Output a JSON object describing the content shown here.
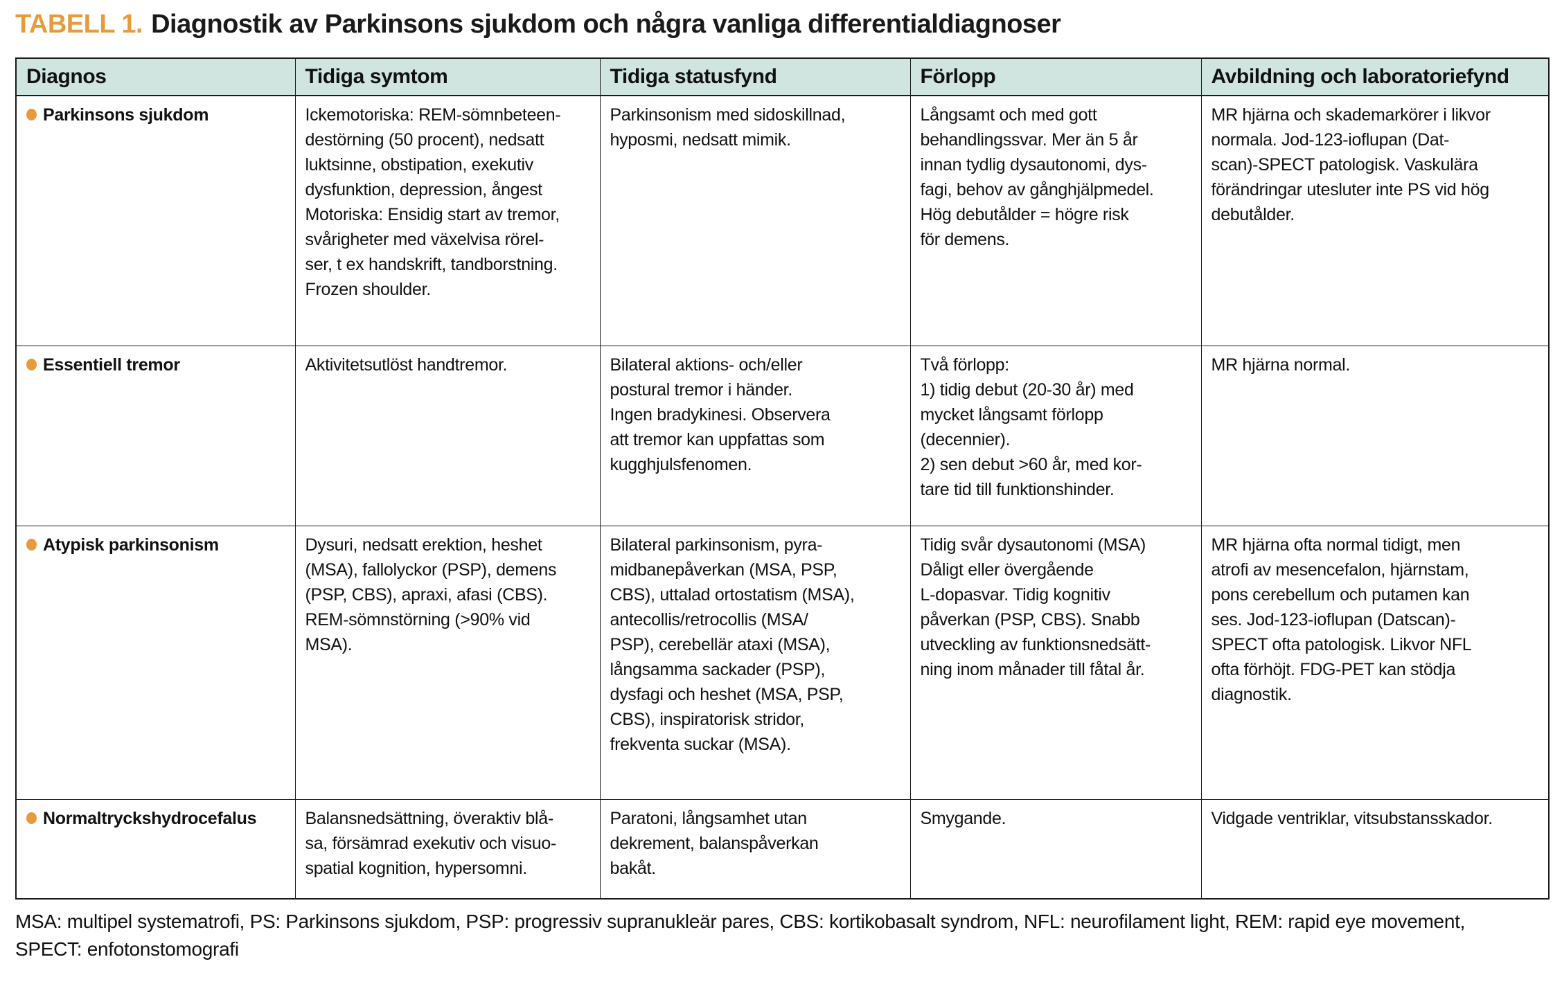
{
  "page": {
    "title_label": "TABELL 1.",
    "title_text": "Diagnostik av Parkinsons sjukdom och några vanliga differentialdiagnoser"
  },
  "colors": {
    "accent_orange": "#e89b3c",
    "header_background": "#d0e5e0",
    "border": "#1a1a1a"
  },
  "table": {
    "columns": [
      "Diagnos",
      "Tidiga symtom",
      "Tidiga statusfynd",
      "Förlopp",
      "Avbildning och laboratoriefynd"
    ],
    "rows": [
      {
        "diagnosis": "Parkinsons sjukdom",
        "cells": [
          "Ickemotoriska: REM-sömnbeteen-\ndestörning (50 procent), nedsatt\nluktsinne, obstipation, exekutiv\ndysfunktion, depression, ångest\nMotoriska: Ensidig start av tremor,\nsvårigheter med växelvisa rörel-\nser, t ex handskrift, tandborstning.\nFrozen shoulder.",
          "Parkinsonism med sidoskillnad,\nhyposmi, nedsatt mimik.",
          "Långsamt och med gott\nbehandlingssvar. Mer än 5 år\ninnan tydlig dysautonomi, dys-\nfagi, behov av gånghjälpmedel.\nHög debutålder = högre risk\nför demens.",
          "MR hjärna och skademarkörer i likvor\nnormala. Jod-123-ioflupan (Dat-\nscan)-SPECT patologisk. Vaskulära\nförändringar utesluter inte PS vid hög\ndebutålder."
        ]
      },
      {
        "diagnosis": "Essentiell tremor",
        "cells": [
          "Aktivitetsutlöst handtremor.",
          "Bilateral aktions- och/eller\npostural tremor i händer.\nIngen bradykinesi. Observera\natt tremor kan uppfattas som\nkugghjulsfenomen.",
          "Två förlopp:\n1) tidig debut (20-30 år) med\nmycket långsamt förlopp\n(decennier).\n2) sen debut >60 år, med kor-\ntare tid till funktionshinder.",
          "MR hjärna normal."
        ]
      },
      {
        "diagnosis": "Atypisk parkinsonism",
        "cells": [
          "Dysuri, nedsatt erektion, heshet\n(MSA), fallolyckor (PSP), demens\n(PSP, CBS), apraxi, afasi (CBS).\nREM-sömnstörning (>90% vid\nMSA).",
          "Bilateral parkinsonism, pyra-\nmidbanepåverkan (MSA, PSP,\nCBS), uttalad ortostatism (MSA),\nantecollis/retrocollis (MSA/\nPSP), cerebellär ataxi (MSA),\nlångsamma sackader (PSP),\ndysfagi och heshet (MSA, PSP,\nCBS), inspiratorisk stridor,\nfrekventa suckar (MSA).",
          "Tidig svår dysautonomi (MSA)\nDåligt eller övergående\nL-dopasvar. Tidig kognitiv\npåverkan (PSP, CBS). Snabb\nutveckling av funktionsnedsätt-\nning inom månader till fåtal år.",
          "MR hjärna ofta normal tidigt, men\natrofi av mesencefalon, hjärnstam,\npons cerebellum och putamen kan\nses. Jod-123-ioflupan (Datscan)-\nSPECT ofta patologisk. Likvor NFL\nofta förhöjt. FDG-PET kan stödja\ndiagnostik."
        ]
      },
      {
        "diagnosis": "Normaltryckshydrocefalus",
        "cells": [
          "Balansnedsättning, överaktiv blå-\nsa, försämrad exekutiv och visuo-\nspatial kognition, hypersomni.",
          "Paratoni, långsamhet utan\ndekrement, balanspåverkan\nbakåt.",
          "Smygande.",
          "Vidgade ventriklar, vitsubstansskador."
        ]
      }
    ]
  },
  "footnote": "MSA: multipel systematrofi, PS: Parkinsons sjukdom, PSP: progressiv supranukleär pares, CBS: kortikobasalt syndrom, NFL: neurofilament light, REM: rapid eye movement,\nSPECT: enfotonstomografi"
}
